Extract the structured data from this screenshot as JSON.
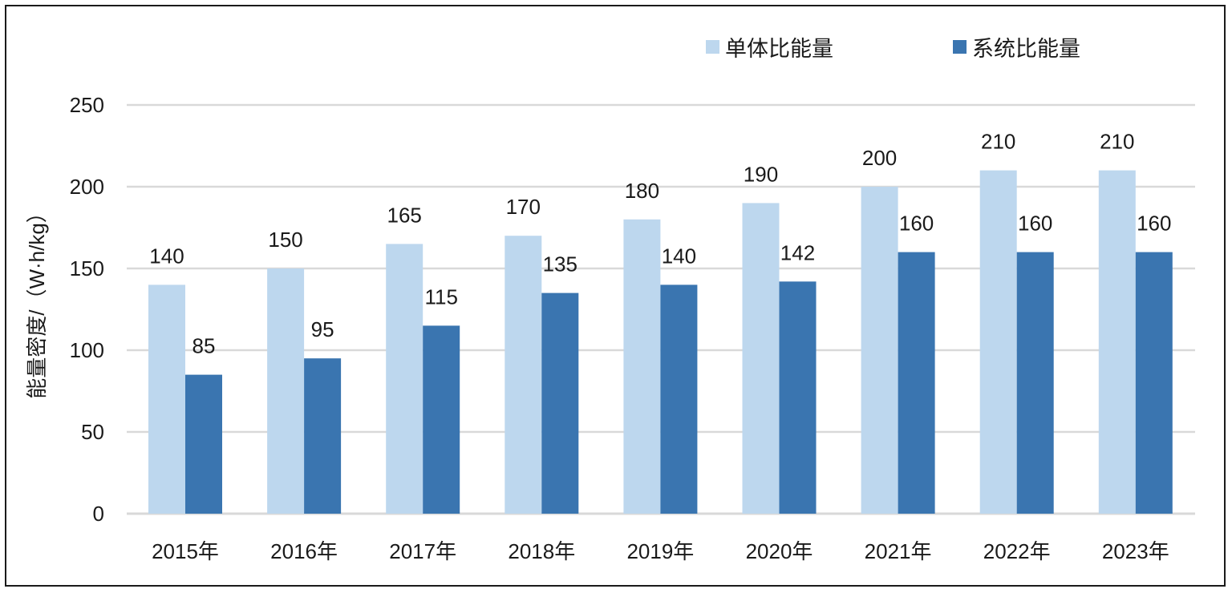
{
  "chart_data": {
    "type": "bar",
    "title": "",
    "xlabel": "",
    "ylabel": "能量密度/（W·h/kg）",
    "categories": [
      "2015年",
      "2016年",
      "2017年",
      "2018年",
      "2019年",
      "2020年",
      "2021年",
      "2022年",
      "2023年"
    ],
    "series": [
      {
        "name": "单体比能量",
        "color": "#bdd7ee",
        "values": [
          140,
          150,
          165,
          170,
          180,
          190,
          200,
          210,
          210
        ]
      },
      {
        "name": "系统比能量",
        "color": "#3a75b0",
        "values": [
          85,
          95,
          115,
          135,
          140,
          142,
          160,
          160,
          160
        ]
      }
    ],
    "ylim": [
      0,
      250
    ],
    "yticks": [
      0,
      50,
      100,
      150,
      200,
      250
    ],
    "grid": true,
    "gridline_color": "#d9d9d9",
    "legend_position": "top-right",
    "data_labels": true
  }
}
